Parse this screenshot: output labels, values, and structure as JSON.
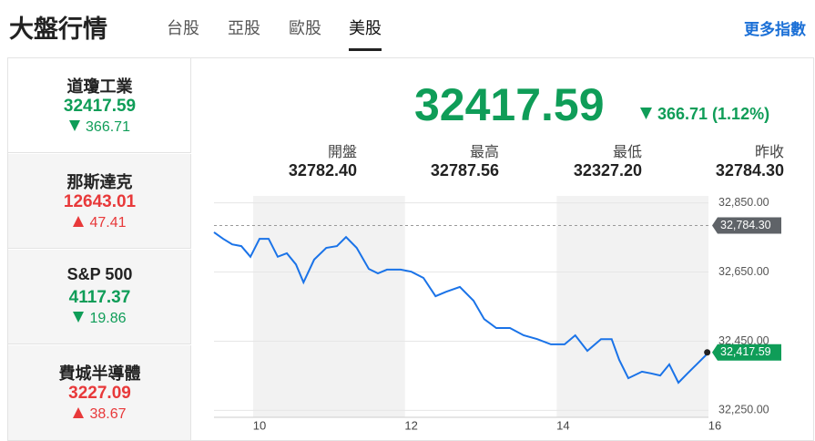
{
  "header": {
    "title": "大盤行情",
    "tabs": [
      "台股",
      "亞股",
      "歐股",
      "美股"
    ],
    "active_tab": 3,
    "more_link": "更多指數"
  },
  "selected_index": 0,
  "indices": [
    {
      "name": "道瓊工業",
      "value": "32417.59",
      "change": "366.71",
      "direction": "down"
    },
    {
      "name": "那斯達克",
      "value": "12643.01",
      "change": "47.41",
      "direction": "up"
    },
    {
      "name": "S&P 500",
      "value": "4117.37",
      "change": "19.86",
      "direction": "down"
    },
    {
      "name": "費城半導體",
      "value": "3227.09",
      "change": "38.67",
      "direction": "up"
    }
  ],
  "detail": {
    "value": "32417.59",
    "change": "366.71 (1.12%)",
    "direction": "down",
    "stats": [
      {
        "label": "開盤",
        "value": "32782.40"
      },
      {
        "label": "最高",
        "value": "32787.56"
      },
      {
        "label": "最低",
        "value": "32327.20"
      },
      {
        "label": "昨收",
        "value": "32784.30"
      }
    ]
  },
  "chart": {
    "type": "line",
    "color": "#1a73e8",
    "x": [
      9.4,
      9.52,
      9.64,
      9.76,
      9.88,
      10.0,
      10.12,
      10.24,
      10.36,
      10.48,
      10.58,
      10.72,
      10.88,
      11.02,
      11.14,
      11.28,
      11.44,
      11.56,
      11.68,
      11.86,
      12.0,
      12.16,
      12.32,
      12.46,
      12.64,
      12.82,
      12.96,
      13.12,
      13.3,
      13.48,
      13.66,
      13.84,
      14.02,
      14.16,
      14.32,
      14.5,
      14.64,
      14.74,
      14.86,
      15.04,
      15.16,
      15.28,
      15.4,
      15.52,
      15.64,
      15.76,
      15.88,
      15.9
    ],
    "values": [
      32765,
      32746,
      32730,
      32725,
      32694,
      32746,
      32746,
      32694,
      32704,
      32672,
      32620,
      32686,
      32720,
      32725,
      32751,
      32720,
      32659,
      32646,
      32657,
      32657,
      32651,
      32633,
      32580,
      32593,
      32607,
      32567,
      32514,
      32488,
      32488,
      32467,
      32456,
      32441,
      32441,
      32467,
      32422,
      32456,
      32456,
      32396,
      32343,
      32362,
      32357,
      32351,
      32383,
      32330,
      32357,
      32383,
      32409,
      32417.59
    ],
    "xlim": [
      9.4,
      16
    ],
    "ylim": [
      32230,
      32870
    ],
    "xticks": [
      10,
      12,
      14,
      16
    ],
    "yticks": [
      {
        "value": 32250,
        "label": "32,250.00"
      },
      {
        "value": 32450,
        "label": "32,450.00"
      },
      {
        "value": 32650,
        "label": "32,650.00"
      },
      {
        "value": 32850,
        "label": "32,850.00"
      }
    ],
    "reference": {
      "value": 32784.3,
      "label": "32,784.30"
    },
    "last": {
      "value": 32417.59,
      "label": "32,417.59"
    },
    "grid": true
  }
}
